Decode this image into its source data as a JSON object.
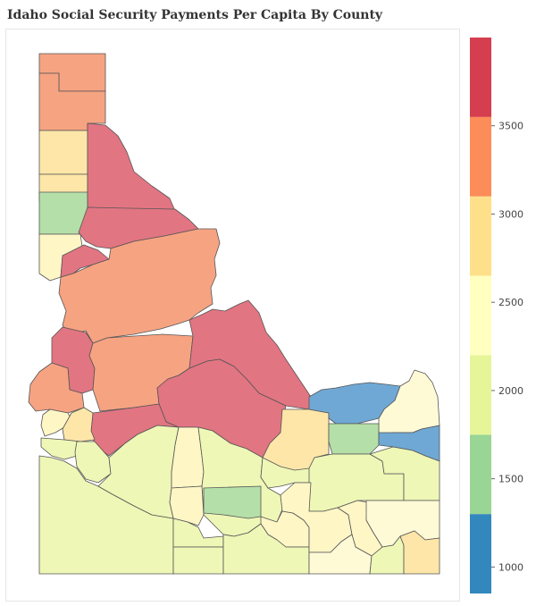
{
  "title": "Idaho Social Security Payments Per Capita By County",
  "legend": {
    "ticks": [
      "1000",
      "1500",
      "2000",
      "2500",
      "3000",
      "3500"
    ],
    "bins": [
      {
        "from": 850,
        "to": 1300,
        "color": "#3288bd"
      },
      {
        "from": 1300,
        "to": 1750,
        "color": "#99d594"
      },
      {
        "from": 1750,
        "to": 2200,
        "color": "#e6f598"
      },
      {
        "from": 2200,
        "to": 2650,
        "color": "#ffffbf"
      },
      {
        "from": 2650,
        "to": 3100,
        "color": "#fee08b"
      },
      {
        "from": 3100,
        "to": 3550,
        "color": "#fc8d59"
      },
      {
        "from": 3550,
        "to": 4000,
        "color": "#d53e4f"
      }
    ]
  }
}
